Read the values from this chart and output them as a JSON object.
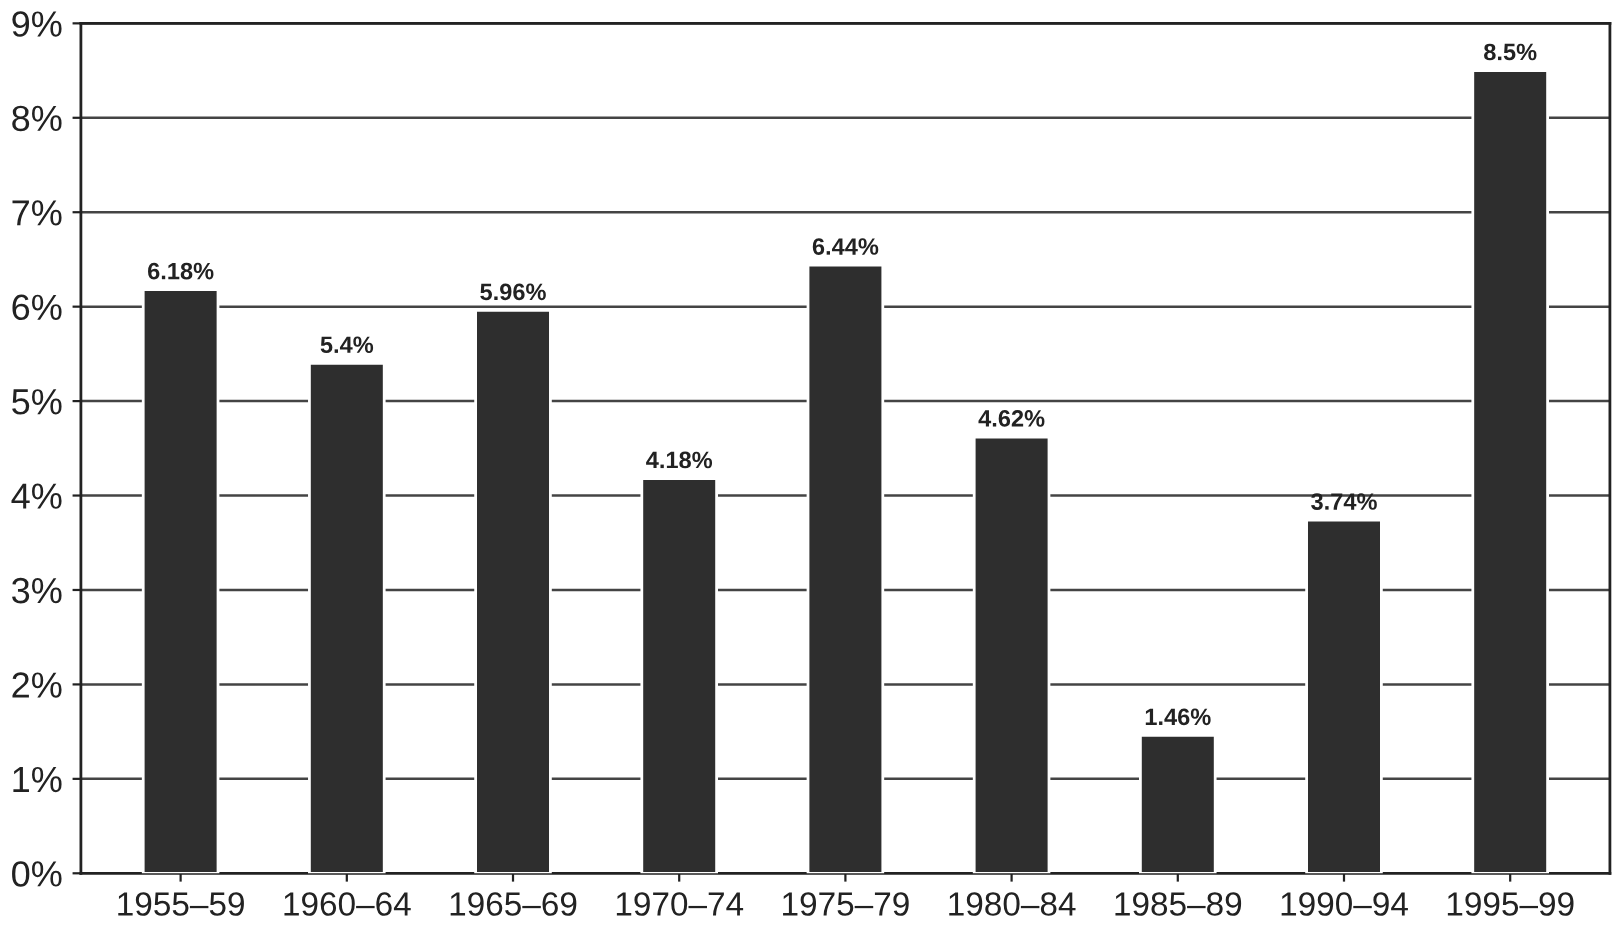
{
  "chart_data": {
    "type": "bar",
    "categories": [
      "1955–59",
      "1960–64",
      "1965–69",
      "1970–74",
      "1975–79",
      "1980–84",
      "1985–89",
      "1990–94",
      "1995–99"
    ],
    "values": [
      6.18,
      5.4,
      5.96,
      4.18,
      6.44,
      4.62,
      1.46,
      3.74,
      8.5
    ],
    "value_labels": [
      "6.18%",
      "5.4%",
      "5.96%",
      "4.18%",
      "6.44%",
      "4.62%",
      "1.46%",
      "3.74%",
      "8.5%"
    ],
    "color": "#2e2e2e",
    "ylim": [
      0,
      9
    ],
    "yticks": [
      {
        "value": 0,
        "label": "0%"
      },
      {
        "value": 1,
        "label": "1%"
      },
      {
        "value": 2,
        "label": "2%"
      },
      {
        "value": 3,
        "label": "3%"
      },
      {
        "value": 4,
        "label": "4%"
      },
      {
        "value": 5,
        "label": "5%"
      },
      {
        "value": 6,
        "label": "6%"
      },
      {
        "value": 7,
        "label": "7%"
      },
      {
        "value": 8,
        "label": "8%"
      },
      {
        "value": 9,
        "label": "9%"
      }
    ],
    "grid": "y"
  }
}
